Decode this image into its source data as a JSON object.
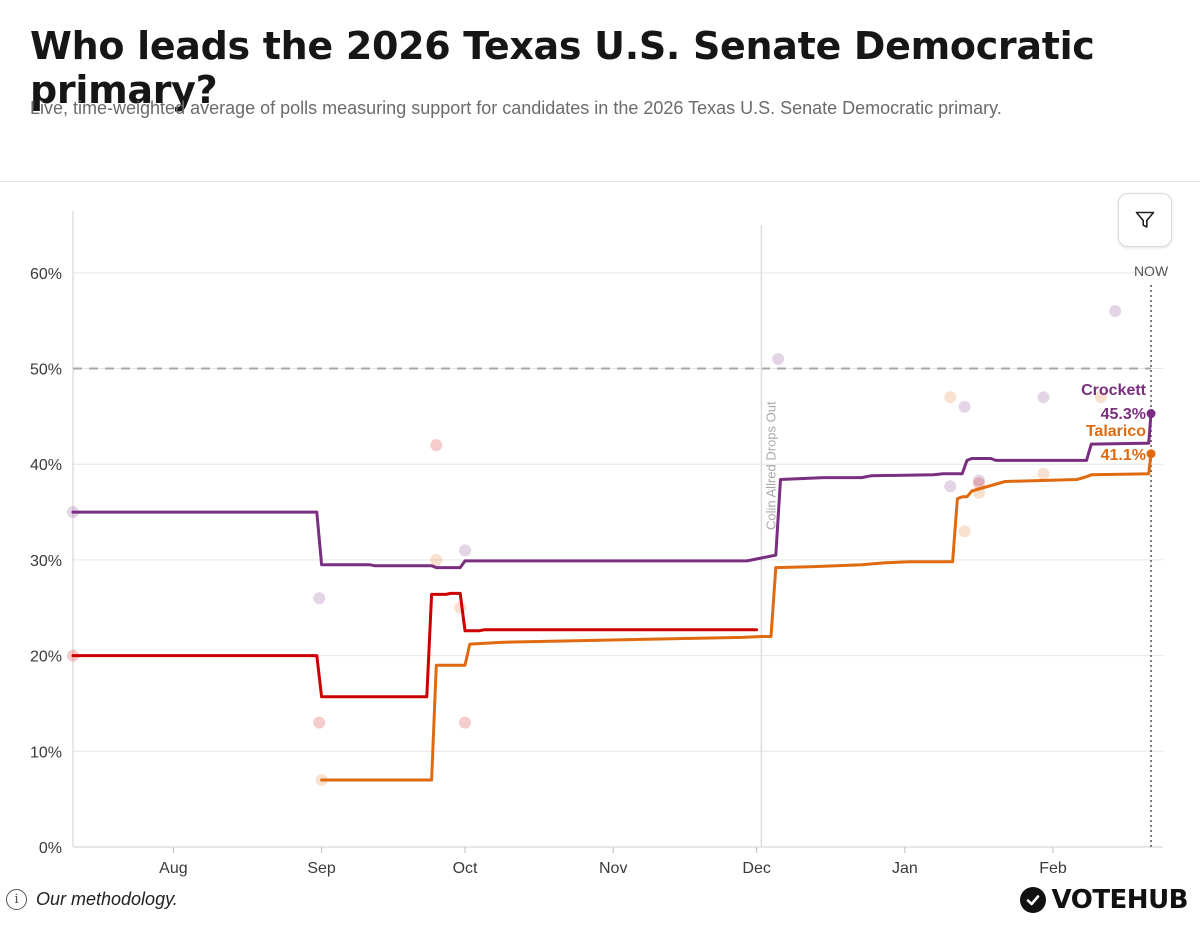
{
  "header": {
    "title": "Who leads the 2026 Texas U.S. Senate Democratic primary?",
    "subtitle": "Live, time-weighted average of polls measuring support for candidates in the 2026 Texas U.S. Senate Democratic primary."
  },
  "footer": {
    "methodology_label": "Our methodology.",
    "brand": "VOTEHUB"
  },
  "icons": {
    "filter": "funnel-icon",
    "info": "info-icon",
    "brand": "check-circle-icon"
  },
  "colors": {
    "crockett": "#7a2e80",
    "talarico": "#e06a10",
    "allred": "#cc0000",
    "grid": "#e6e6e6",
    "threshold": "#a8a8a8"
  },
  "chart_data": {
    "type": "line",
    "x_unit": "days since Jul 1, 2025",
    "x_range": [
      10,
      238
    ],
    "ylim": [
      0,
      65
    ],
    "y_ticks": [
      0,
      10,
      20,
      30,
      40,
      50,
      60
    ],
    "y_tick_labels": [
      "0%",
      "10%",
      "20%",
      "30%",
      "40%",
      "50%",
      "60%"
    ],
    "x_ticks": [
      {
        "label": "Aug",
        "x": 31
      },
      {
        "label": "Sep",
        "x": 62
      },
      {
        "label": "Oct",
        "x": 92
      },
      {
        "label": "Nov",
        "x": 123
      },
      {
        "label": "Dec",
        "x": 153
      },
      {
        "label": "Jan",
        "x": 184
      },
      {
        "label": "Feb",
        "x": 215
      }
    ],
    "threshold": {
      "y": 50,
      "style": "dashed"
    },
    "events": [
      {
        "label": "Colin Allred Drops Out",
        "x": 154
      }
    ],
    "now": {
      "label": "NOW",
      "x": 235.5
    },
    "series": [
      {
        "name": "Crockett",
        "key": "crockett",
        "end_label": "Crockett",
        "end_value_label": "45.3%",
        "end_value": 45.3,
        "points": [
          [
            10,
            35
          ],
          [
            61,
            35
          ],
          [
            62,
            29.5
          ],
          [
            72,
            29.5
          ],
          [
            73,
            29.4
          ],
          [
            85,
            29.4
          ],
          [
            86,
            29.2
          ],
          [
            91,
            29.2
          ],
          [
            92,
            29.9
          ],
          [
            150,
            29.9
          ],
          [
            151,
            29.9
          ],
          [
            157,
            30.5
          ],
          [
            158,
            38.4
          ],
          [
            167,
            38.6
          ],
          [
            175,
            38.6
          ],
          [
            177,
            38.8
          ],
          [
            190,
            38.9
          ],
          [
            192,
            39.0
          ],
          [
            196,
            39.0
          ],
          [
            197,
            40.4
          ],
          [
            198,
            40.6
          ],
          [
            202,
            40.6
          ],
          [
            203,
            40.4
          ],
          [
            222,
            40.4
          ],
          [
            223,
            42.1
          ],
          [
            235,
            42.2
          ],
          [
            235.5,
            45.3
          ]
        ]
      },
      {
        "name": "Talarico",
        "key": "talarico",
        "end_label": "Talarico",
        "end_value_label": "41.1%",
        "end_value": 41.1,
        "points": [
          [
            62,
            7
          ],
          [
            85,
            7
          ],
          [
            86,
            19
          ],
          [
            92,
            19
          ],
          [
            93,
            21.2
          ],
          [
            100,
            21.4
          ],
          [
            110,
            21.5
          ],
          [
            130,
            21.7
          ],
          [
            150,
            21.9
          ],
          [
            154,
            22.0
          ],
          [
            156,
            22.0
          ],
          [
            157,
            29.2
          ],
          [
            165,
            29.3
          ],
          [
            175,
            29.5
          ],
          [
            180,
            29.7
          ],
          [
            185,
            29.8
          ],
          [
            194,
            29.8
          ],
          [
            195,
            36.4
          ],
          [
            196,
            36.6
          ],
          [
            197,
            36.6
          ],
          [
            198,
            37.2
          ],
          [
            205,
            38.2
          ],
          [
            220,
            38.4
          ],
          [
            222,
            38.7
          ],
          [
            223,
            38.9
          ],
          [
            235,
            39.0
          ],
          [
            235.5,
            41.1
          ]
        ]
      },
      {
        "name": "Allred",
        "key": "allred",
        "end_label": "",
        "end_value_label": "",
        "end_value": null,
        "points": [
          [
            10,
            20
          ],
          [
            61,
            20
          ],
          [
            62,
            15.7
          ],
          [
            84,
            15.7
          ],
          [
            85,
            26.4
          ],
          [
            88,
            26.4
          ],
          [
            89,
            26.5
          ],
          [
            91,
            26.5
          ],
          [
            92,
            22.6
          ],
          [
            95,
            22.6
          ],
          [
            96,
            22.7
          ],
          [
            153,
            22.7
          ]
        ]
      }
    ],
    "polls": [
      {
        "series": "crockett",
        "x": 10,
        "y": 35
      },
      {
        "series": "crockett",
        "x": 61.5,
        "y": 26
      },
      {
        "series": "crockett",
        "x": 92,
        "y": 31
      },
      {
        "series": "crockett",
        "x": 157.5,
        "y": 51
      },
      {
        "series": "crockett",
        "x": 193.5,
        "y": 37.7
      },
      {
        "series": "crockett",
        "x": 196.5,
        "y": 46
      },
      {
        "series": "crockett",
        "x": 199.5,
        "y": 38.3
      },
      {
        "series": "crockett",
        "x": 213,
        "y": 47
      },
      {
        "series": "crockett",
        "x": 228,
        "y": 56
      },
      {
        "series": "talarico",
        "x": 62,
        "y": 7
      },
      {
        "series": "talarico",
        "x": 86,
        "y": 30
      },
      {
        "series": "talarico",
        "x": 91,
        "y": 25
      },
      {
        "series": "talarico",
        "x": 193.5,
        "y": 47
      },
      {
        "series": "talarico",
        "x": 196.5,
        "y": 33
      },
      {
        "series": "talarico",
        "x": 199.5,
        "y": 37
      },
      {
        "series": "talarico",
        "x": 213,
        "y": 39
      },
      {
        "series": "talarico",
        "x": 225,
        "y": 47
      },
      {
        "series": "allred",
        "x": 10,
        "y": 20
      },
      {
        "series": "allred",
        "x": 61.5,
        "y": 13
      },
      {
        "series": "allred",
        "x": 86,
        "y": 42
      },
      {
        "series": "allred",
        "x": 92,
        "y": 13
      },
      {
        "series": "allred",
        "x": 199.5,
        "y": 38
      }
    ]
  }
}
